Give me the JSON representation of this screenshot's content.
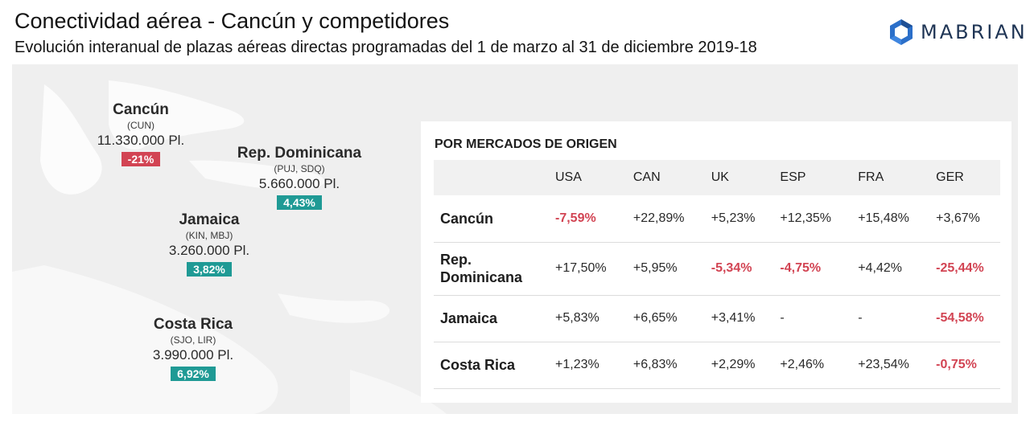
{
  "header": {
    "title": "Conectividad aérea - Cancún y competidores",
    "subtitle": "Evolución interanual de plazas aéreas directas programadas del 1 de marzo al 31 de diciembre 2019-18",
    "logo_text": "MABRIAN"
  },
  "map": {
    "regions": [
      {
        "name": "Cancún",
        "code": "(CUN)",
        "seats": "11.330.000 Pl.",
        "change": "-21%",
        "trend": "negative"
      },
      {
        "name": "Rep. Dominicana",
        "code": "(PUJ, SDQ)",
        "seats": "5.660.000 Pl.",
        "change": "4,43%",
        "trend": "positive"
      },
      {
        "name": "Jamaica",
        "code": "(KIN, MBJ)",
        "seats": "3.260.000 Pl.",
        "change": "3,82%",
        "trend": "positive"
      },
      {
        "name": "Costa Rica",
        "code": "(SJO, LIR)",
        "seats": "3.990.000 Pl.",
        "change": "6,92%",
        "trend": "positive"
      }
    ]
  },
  "table": {
    "title": "POR MERCADOS DE ORIGEN",
    "columns": [
      "USA",
      "CAN",
      "UK",
      "ESP",
      "FRA",
      "GER"
    ],
    "rows": [
      {
        "label": "Cancún",
        "values": [
          "-7,59%",
          "+22,89%",
          "+5,23%",
          "+12,35%",
          "+15,48%",
          "+3,67%"
        ]
      },
      {
        "label": "Rep. Dominicana",
        "values": [
          "+17,50%",
          "+5,95%",
          "-5,34%",
          "-4,75%",
          "+4,42%",
          "-25,44%"
        ]
      },
      {
        "label": "Jamaica",
        "values": [
          "+5,83%",
          "+6,65%",
          "+3,41%",
          "-",
          "-",
          "-54,58%"
        ]
      },
      {
        "label": "Costa Rica",
        "values": [
          "+1,23%",
          "+6,83%",
          "+2,29%",
          "+2,46%",
          "+23,54%",
          "-0,75%"
        ]
      }
    ]
  },
  "colors": {
    "negative": "#d24453",
    "positive": "#1f9a95",
    "brand": "#1f3555"
  }
}
